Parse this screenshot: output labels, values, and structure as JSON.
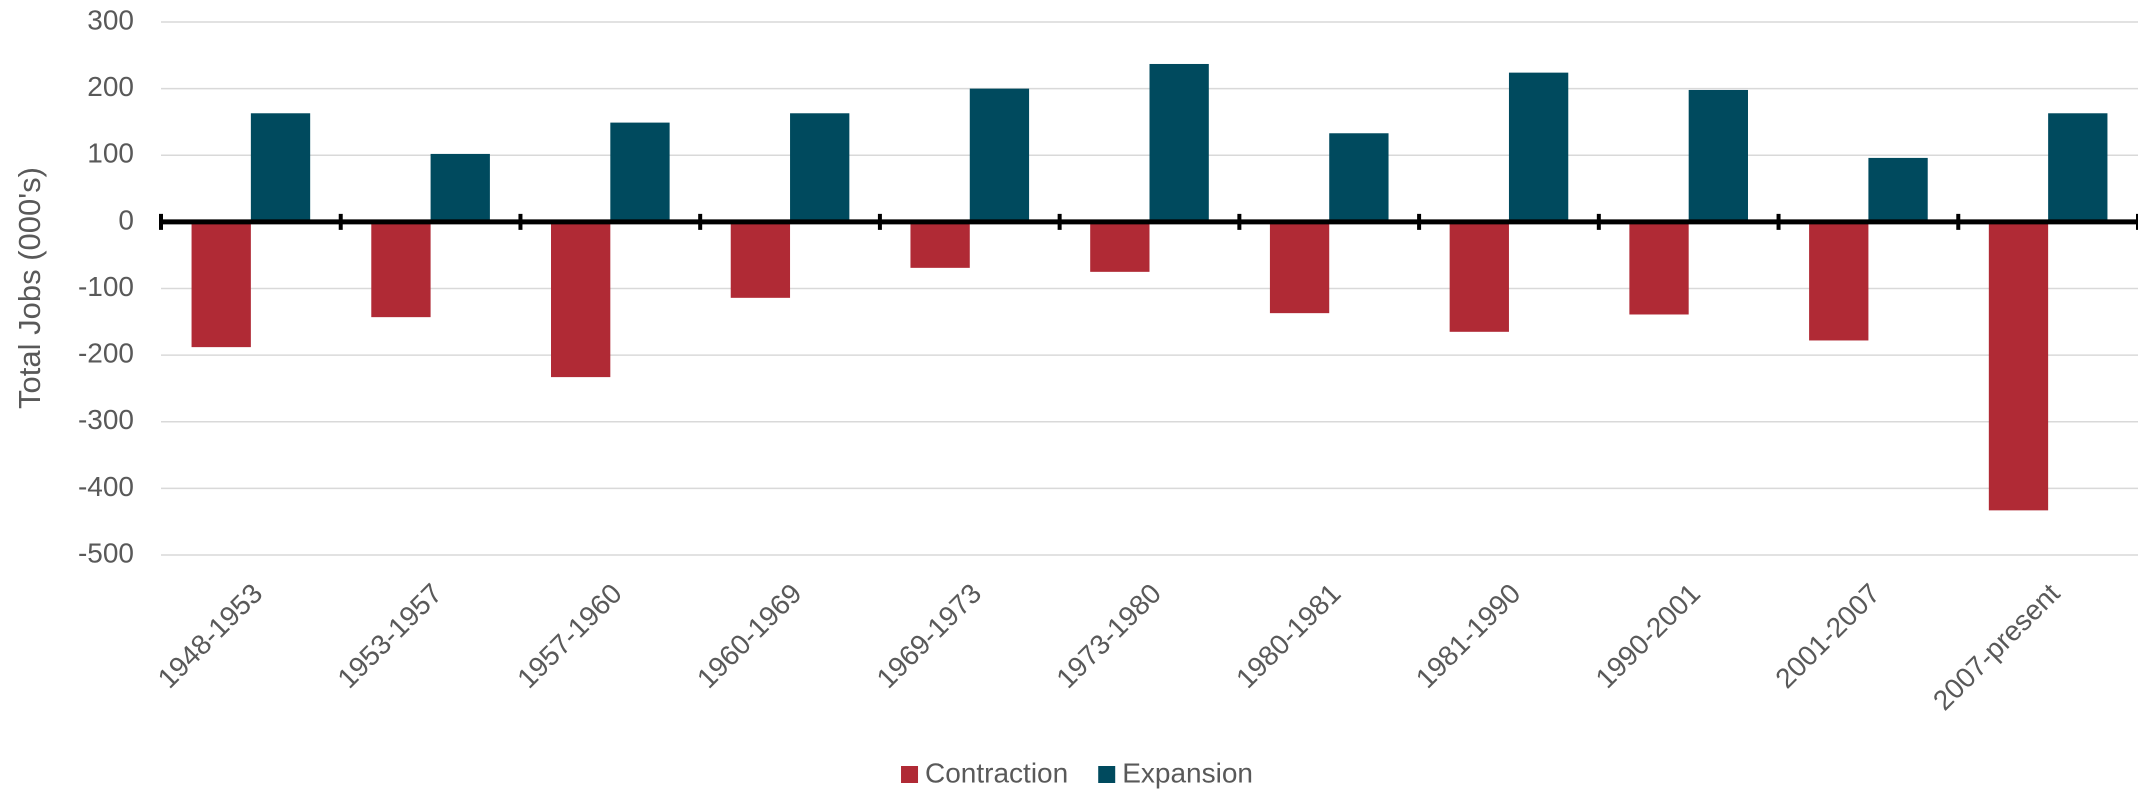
{
  "chart_data": {
    "type": "bar",
    "y_label": "Total Jobs (000's)",
    "categories": [
      "1948-1953",
      "1953-1957",
      "1957-1960",
      "1960-1969",
      "1969-1973",
      "1973-1980",
      "1980-1981",
      "1981-1990",
      "1990-2001",
      "2001-2007",
      "2007-present"
    ],
    "series": [
      {
        "name": "Contraction",
        "color": "#b02a35",
        "values": [
          -188,
          -143,
          -233,
          -114,
          -69,
          -75,
          -137,
          -165,
          -139,
          -178,
          -433
        ]
      },
      {
        "name": "Expansion",
        "color": "#004a5e",
        "values": [
          163,
          102,
          149,
          163,
          200,
          237,
          133,
          224,
          198,
          96,
          163
        ]
      }
    ],
    "ylim": [
      -500,
      300
    ],
    "yticks": [
      -500,
      -400,
      -300,
      -200,
      -100,
      0,
      100,
      200,
      300
    ],
    "grid": true,
    "legend": "bottom"
  }
}
